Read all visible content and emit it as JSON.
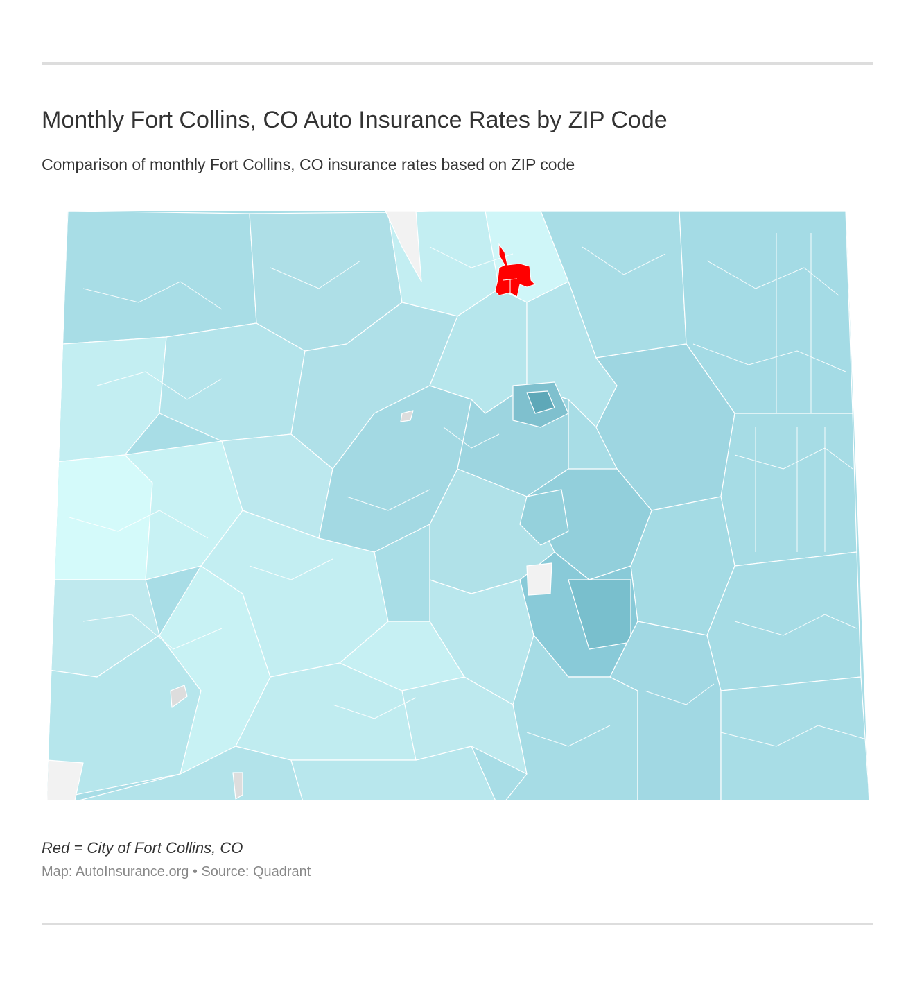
{
  "header": {
    "title": "Monthly Fort Collins, CO Auto Insurance Rates by ZIP Code",
    "subtitle": "Comparison of monthly Fort Collins, CO insurance rates based on ZIP code"
  },
  "map": {
    "region": "Colorado",
    "highlight": {
      "city": "Fort Collins, CO",
      "color": "#ff0000"
    },
    "colors": {
      "lowest_rate": "#d4fafa",
      "low_rate": "#c3eef2",
      "mid_rate": "#a8dde6",
      "high_rate": "#8ccbd8",
      "highest_rate": "#6ab4c4",
      "no_data": "#dddddd",
      "outside": "#f2f2f2",
      "border": "#ffffff"
    }
  },
  "footer": {
    "legend_note": "Red = City of Fort Collins, CO",
    "credit": "Map: AutoInsurance.org • Source: Quadrant"
  }
}
